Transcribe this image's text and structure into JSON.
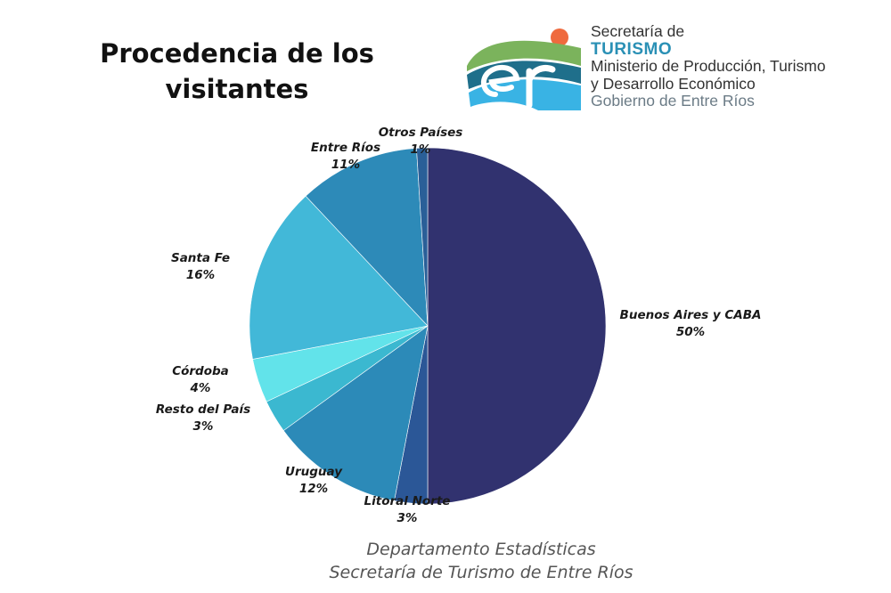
{
  "header": {
    "title_line1": "Procedencia de los",
    "title_line2": "visitantes"
  },
  "logo": {
    "line1": "Secretaría de",
    "line2": "TURISMO",
    "line3": "Ministerio de Producción, Turismo",
    "line4": "y Desarrollo Económico",
    "line5": "Gobierno de Entre Ríos",
    "colors": {
      "green": "#7bb35c",
      "teal": "#1f6f8b",
      "blue": "#39b3e4",
      "sun": "#ef6a3e"
    }
  },
  "chart_data": {
    "type": "pie",
    "title": "Procedencia de los visitantes",
    "categories": [
      "Buenos Aires y CABA",
      "Litoral Norte",
      "Uruguay",
      "Resto del País",
      "Córdoba",
      "Santa Fe",
      "Entre Ríos",
      "Otros Países"
    ],
    "values": [
      50,
      3,
      12,
      3,
      4,
      16,
      11,
      1
    ],
    "value_labels": [
      "50%",
      "3%",
      "12%",
      "3%",
      "4%",
      "16%",
      "11%",
      "1%"
    ],
    "colors": [
      "#31326f",
      "#2b5797",
      "#2c8ab8",
      "#3bb8d0",
      "#62e3ea",
      "#42b8d8",
      "#2d8ab8",
      "#2a5f98"
    ],
    "start": "12 o'clock, clockwise",
    "legend": "labels outside slices"
  },
  "source": {
    "line1": "Departamento Estadísticas",
    "line2": "Secretaría de Turismo de Entre Ríos"
  }
}
